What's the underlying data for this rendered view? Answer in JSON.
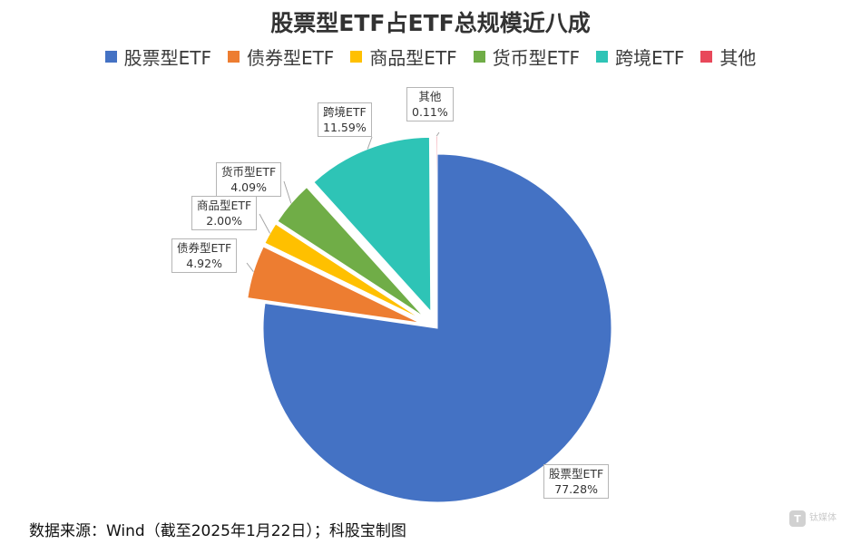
{
  "chart_data": {
    "type": "pie",
    "title": "股票型ETF占ETF总规模近八成",
    "legend_position": "top",
    "slices": [
      {
        "label": "股票型ETF",
        "value": 77.28,
        "value_label": "77.28%",
        "color": "#4472C4"
      },
      {
        "label": "债券型ETF",
        "value": 4.92,
        "value_label": "4.92%",
        "color": "#ED7D31"
      },
      {
        "label": "商品型ETF",
        "value": 2.0,
        "value_label": "2.00%",
        "color": "#FFC000"
      },
      {
        "label": "货币型ETF",
        "value": 4.09,
        "value_label": "4.09%",
        "color": "#70AD47"
      },
      {
        "label": "跨境ETF",
        "value": 11.59,
        "value_label": "11.59%",
        "color": "#2EC4B6"
      },
      {
        "label": "其他",
        "value": 0.11,
        "value_label": "0.11%",
        "color": "#E8485A"
      }
    ]
  },
  "footer": {
    "source": "数据来源：Wind（截至2025年1月22日）；科股宝制图"
  },
  "watermark": {
    "badge": "T",
    "text": "钛媒体"
  }
}
